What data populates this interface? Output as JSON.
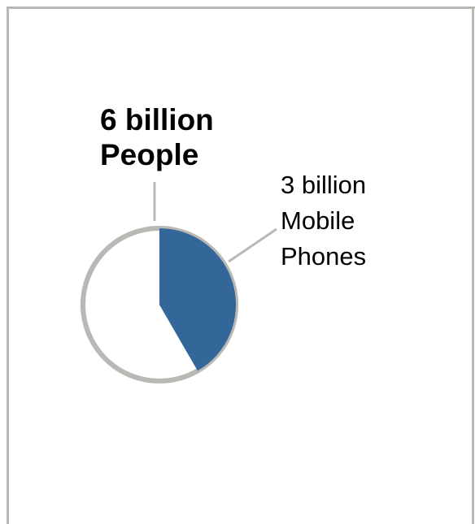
{
  "chart_data": {
    "type": "pie",
    "total": 6,
    "slices": [
      {
        "label_lines": [
          "3 billion",
          "Mobile",
          "Phones"
        ],
        "value": 2.5,
        "color": "#336699"
      },
      {
        "label_lines": [],
        "value": 3.5,
        "color": "#ffffff"
      }
    ],
    "total_label_lines": [
      "6 billion",
      "People"
    ],
    "outline_color": "#b8b8b4"
  }
}
